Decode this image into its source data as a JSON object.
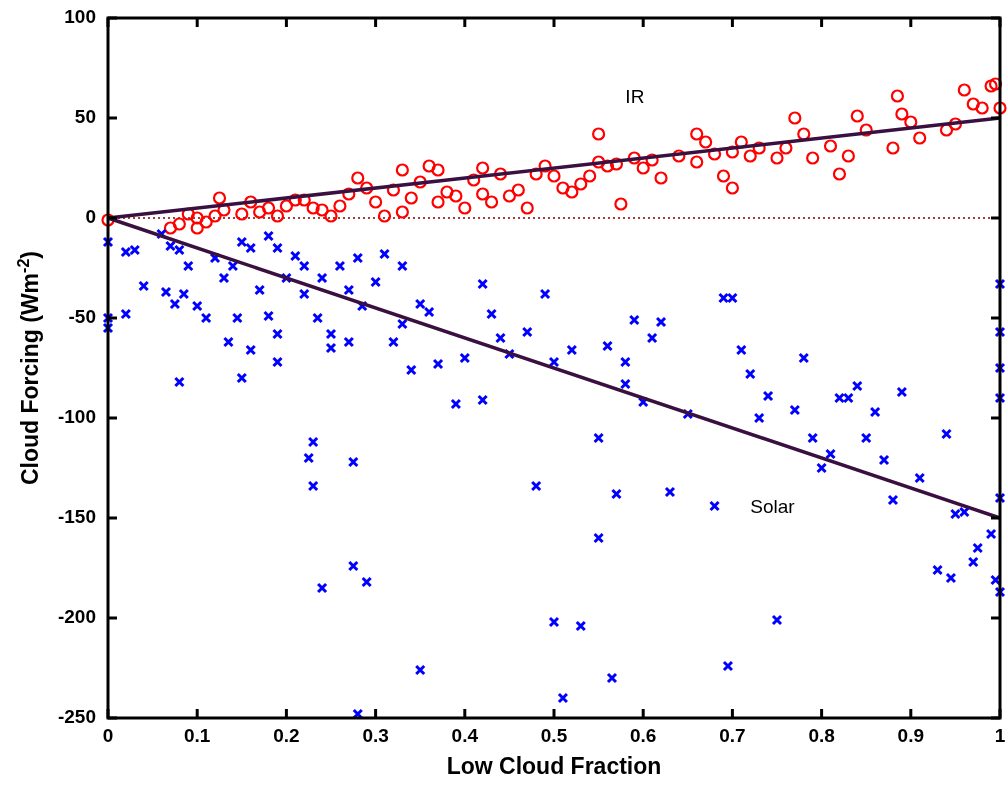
{
  "chart_data": {
    "type": "scatter",
    "xlabel": "Low Cloud Fraction",
    "ylabel": "Cloud Forcing (Wm$^{-2}$)",
    "xlim": [
      0,
      1
    ],
    "xticks": [
      0,
      0.1,
      0.2,
      0.3,
      0.4,
      0.5,
      0.6,
      0.7,
      0.8,
      0.9,
      1
    ],
    "ylim": [
      -250,
      100
    ],
    "yticks": [
      -250,
      -200,
      -150,
      -100,
      -50,
      0,
      50,
      100
    ],
    "grid": false,
    "ref_lines": [
      {
        "axis": "y",
        "value": 0,
        "color": "#800000",
        "line_style": "dotted"
      }
    ],
    "series": [
      {
        "name": "IR",
        "marker": "circle",
        "color": "#ff0000",
        "x": [
          0,
          0.07,
          0.08,
          0.09,
          0.1,
          0.1,
          0.11,
          0.12,
          0.125,
          0.13,
          0.15,
          0.16,
          0.17,
          0.18,
          0.19,
          0.2,
          0.21,
          0.22,
          0.23,
          0.24,
          0.25,
          0.26,
          0.27,
          0.28,
          0.29,
          0.3,
          0.31,
          0.32,
          0.33,
          0.33,
          0.34,
          0.35,
          0.36,
          0.37,
          0.37,
          0.38,
          0.39,
          0.4,
          0.41,
          0.42,
          0.42,
          0.43,
          0.44,
          0.45,
          0.46,
          0.47,
          0.48,
          0.49,
          0.5,
          0.51,
          0.52,
          0.53,
          0.54,
          0.55,
          0.55,
          0.56,
          0.57,
          0.575,
          0.59,
          0.6,
          0.61,
          0.62,
          0.64,
          0.66,
          0.66,
          0.67,
          0.68,
          0.69,
          0.7,
          0.7,
          0.71,
          0.72,
          0.73,
          0.75,
          0.76,
          0.77,
          0.78,
          0.79,
          0.81,
          0.82,
          0.83,
          0.84,
          0.85,
          0.88,
          0.885,
          0.89,
          0.9,
          0.91,
          0.94,
          0.95,
          0.96,
          0.97,
          0.98,
          0.99,
          1.0,
          0.995
        ],
        "values": [
          -1,
          -5,
          -3,
          2,
          -5,
          0,
          -2,
          1,
          10,
          4,
          2,
          8,
          3,
          5,
          1,
          6,
          9,
          9,
          5,
          4,
          1,
          6,
          12,
          20,
          15,
          8,
          1,
          14,
          24,
          3,
          10,
          18,
          26,
          24,
          8,
          13,
          11,
          5,
          19,
          25,
          12,
          8,
          22,
          11,
          14,
          5,
          22,
          26,
          21,
          15,
          13,
          17,
          21,
          28,
          42,
          26,
          27,
          7,
          30,
          25,
          29,
          20,
          31,
          42,
          28,
          38,
          32,
          21,
          33,
          15,
          38,
          31,
          35,
          30,
          35,
          50,
          42,
          30,
          36,
          22,
          31,
          51,
          44,
          35,
          61,
          52,
          48,
          40,
          44,
          47,
          64,
          57,
          55,
          66,
          55,
          67
        ]
      },
      {
        "name": "Solar",
        "marker": "cross",
        "color": "#0000ff",
        "x": [
          0,
          0,
          0,
          0.02,
          0.02,
          0.03,
          0.04,
          0.06,
          0.065,
          0.07,
          0.075,
          0.08,
          0.08,
          0.085,
          0.09,
          0.1,
          0.11,
          0.12,
          0.13,
          0.135,
          0.14,
          0.145,
          0.15,
          0.15,
          0.16,
          0.16,
          0.17,
          0.18,
          0.18,
          0.19,
          0.19,
          0.19,
          0.2,
          0.21,
          0.22,
          0.22,
          0.225,
          0.23,
          0.23,
          0.235,
          0.24,
          0.24,
          0.25,
          0.25,
          0.26,
          0.27,
          0.27,
          0.275,
          0.275,
          0.28,
          0.28,
          0.285,
          0.29,
          0.3,
          0.31,
          0.32,
          0.33,
          0.33,
          0.34,
          0.35,
          0.35,
          0.36,
          0.37,
          0.39,
          0.4,
          0.42,
          0.42,
          0.43,
          0.44,
          0.45,
          0.47,
          0.48,
          0.49,
          0.5,
          0.5,
          0.51,
          0.52,
          0.53,
          0.55,
          0.55,
          0.56,
          0.565,
          0.57,
          0.58,
          0.58,
          0.59,
          0.6,
          0.61,
          0.62,
          0.63,
          0.65,
          0.68,
          0.69,
          0.695,
          0.7,
          0.71,
          0.72,
          0.73,
          0.74,
          0.75,
          0.77,
          0.78,
          0.79,
          0.8,
          0.81,
          0.82,
          0.83,
          0.84,
          0.85,
          0.86,
          0.87,
          0.88,
          0.89,
          0.91,
          0.93,
          0.94,
          0.945,
          0.95,
          0.96,
          0.97,
          0.975,
          0.99,
          0.995,
          1,
          1,
          1,
          1,
          1,
          1
        ],
        "values": [
          -12,
          -50,
          -55,
          -17,
          -48,
          -16,
          -34,
          -8,
          -37,
          -14,
          -43,
          -16,
          -82,
          -38,
          -24,
          -44,
          -50,
          -20,
          -30,
          -62,
          -24,
          -50,
          -80,
          -12,
          -15,
          -66,
          -36,
          -9,
          -49,
          -15,
          -58,
          -72,
          -30,
          -19,
          -24,
          -38,
          -120,
          -112,
          -134,
          -50,
          -30,
          -185,
          -58,
          -65,
          -24,
          -36,
          -62,
          -122,
          -174,
          -20,
          -248,
          -44,
          -182,
          -32,
          -18,
          -62,
          -24,
          -53,
          -76,
          -43,
          -226,
          -47,
          -73,
          -93,
          -70,
          -33,
          -91,
          -48,
          -60,
          -68,
          -57,
          -134,
          -38,
          -72,
          -202,
          -240,
          -66,
          -204,
          -110,
          -160,
          -64,
          -230,
          -138,
          -72,
          -83,
          -51,
          -92,
          -60,
          -52,
          -137,
          -98,
          -144,
          -40,
          -224,
          -40,
          -66,
          -78,
          -100,
          -89,
          -201,
          -96,
          -70,
          -110,
          -125,
          -118,
          -90,
          -90,
          -84,
          -110,
          -97,
          -121,
          -141,
          -87,
          -130,
          -176,
          -108,
          -180,
          -148,
          -147,
          -172,
          -165,
          -158,
          -181,
          -33,
          -57,
          -75,
          -90,
          -140,
          -187
        ]
      },
      {
        "type": "line",
        "color": "#3a1040",
        "line_style": "solid",
        "x": [
          0,
          1
        ],
        "values": [
          0,
          50
        ]
      },
      {
        "type": "line",
        "color": "#3a1040",
        "line_style": "solid",
        "x": [
          0,
          1
        ],
        "values": [
          0,
          -150
        ]
      }
    ]
  }
}
